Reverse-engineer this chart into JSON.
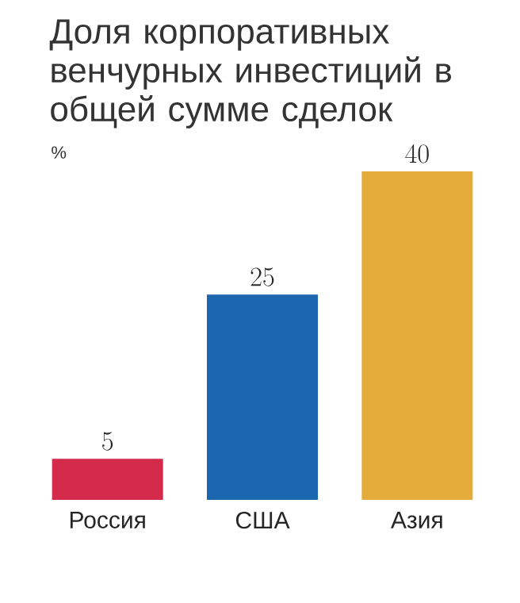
{
  "chart_data": {
    "type": "bar",
    "title": "Доля корпоративных венчурных инвестиций в общей сумме сделок",
    "subtitle": "%",
    "categories": [
      "Россия",
      "США",
      "Азия"
    ],
    "values": [
      5,
      25,
      40
    ],
    "colors": [
      "#d42a4c",
      "#1b66ae",
      "#e4ad3b"
    ],
    "data_labels": true
  }
}
